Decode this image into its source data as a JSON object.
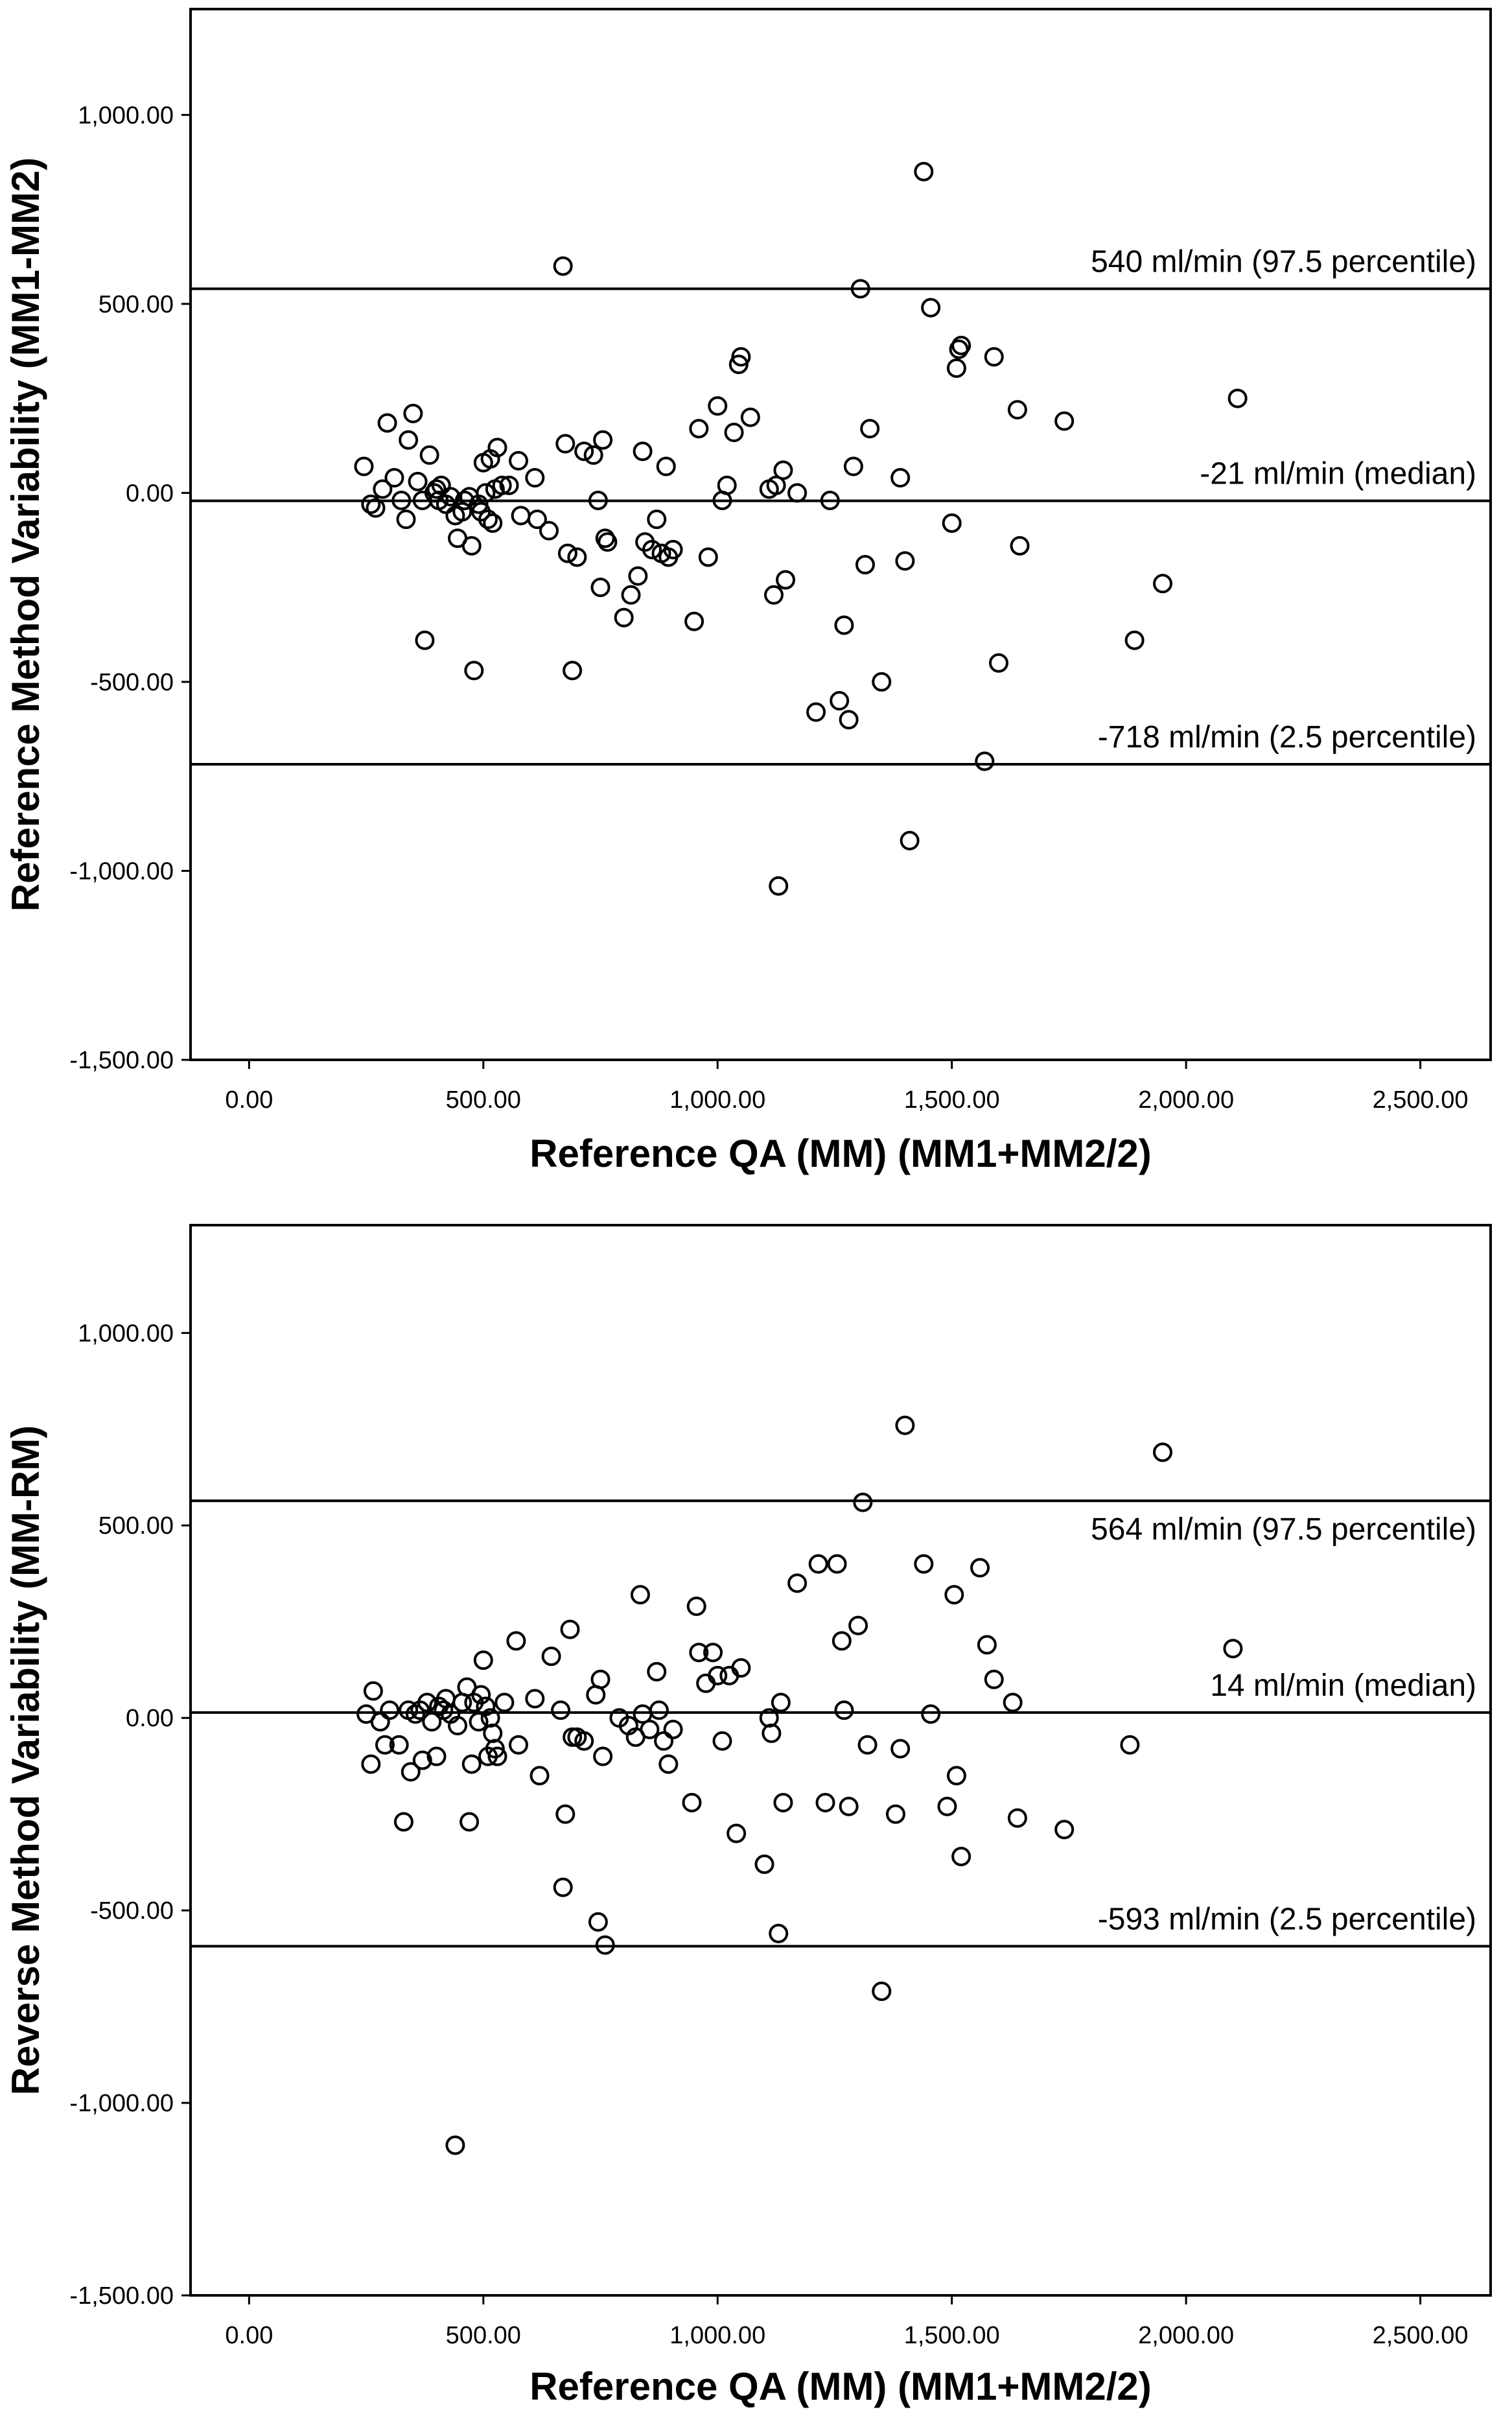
{
  "chart_data": [
    {
      "type": "scatter",
      "title": "",
      "xlabel": "Reference QA (MM) (MM1+MM2/2)",
      "ylabel": "Reference Method Variability (MM1-MM2)",
      "xlim": [
        -125,
        2650
      ],
      "ylim": [
        -1500,
        1280
      ],
      "xticks": [
        "0.00",
        "500.00",
        "1,000.00",
        "1,500.00",
        "2,000.00",
        "2,500.00"
      ],
      "yticks": [
        "1,000.00",
        "500.00",
        "0.00",
        "-500.00",
        "-1,000.00",
        "-1,500.00"
      ],
      "grid": false,
      "reference_lines": [
        {
          "y": 540,
          "label": "540 ml/min (97.5 percentile)"
        },
        {
          "y": -21,
          "label": "-21 ml/min (median)"
        },
        {
          "y": -718,
          "label": "-718 ml/min (2.5 percentile)"
        }
      ],
      "points": [
        [
          245,
          70
        ],
        [
          260,
          -30
        ],
        [
          270,
          -40
        ],
        [
          285,
          10
        ],
        [
          295,
          185
        ],
        [
          310,
          40
        ],
        [
          325,
          -20
        ],
        [
          335,
          -70
        ],
        [
          340,
          140
        ],
        [
          350,
          210
        ],
        [
          360,
          30
        ],
        [
          370,
          -20
        ],
        [
          375,
          -390
        ],
        [
          385,
          100
        ],
        [
          395,
          0
        ],
        [
          400,
          10
        ],
        [
          405,
          -20
        ],
        [
          410,
          20
        ],
        [
          420,
          -30
        ],
        [
          430,
          -10
        ],
        [
          440,
          -60
        ],
        [
          445,
          -120
        ],
        [
          455,
          -50
        ],
        [
          460,
          -20
        ],
        [
          470,
          -10
        ],
        [
          475,
          -140
        ],
        [
          480,
          -470
        ],
        [
          490,
          -30
        ],
        [
          495,
          -50
        ],
        [
          500,
          80
        ],
        [
          505,
          0
        ],
        [
          510,
          -70
        ],
        [
          515,
          90
        ],
        [
          520,
          -80
        ],
        [
          525,
          10
        ],
        [
          530,
          120
        ],
        [
          540,
          20
        ],
        [
          555,
          20
        ],
        [
          575,
          85
        ],
        [
          580,
          -60
        ],
        [
          610,
          40
        ],
        [
          615,
          -70
        ],
        [
          640,
          -100
        ],
        [
          670,
          600
        ],
        [
          675,
          130
        ],
        [
          680,
          -160
        ],
        [
          690,
          -470
        ],
        [
          700,
          -170
        ],
        [
          715,
          110
        ],
        [
          735,
          100
        ],
        [
          745,
          -20
        ],
        [
          750,
          -250
        ],
        [
          755,
          140
        ],
        [
          760,
          -120
        ],
        [
          765,
          -130
        ],
        [
          800,
          -330
        ],
        [
          815,
          -270
        ],
        [
          830,
          -220
        ],
        [
          840,
          110
        ],
        [
          845,
          -130
        ],
        [
          860,
          -150
        ],
        [
          870,
          -70
        ],
        [
          880,
          -160
        ],
        [
          890,
          70
        ],
        [
          895,
          -170
        ],
        [
          905,
          -150
        ],
        [
          950,
          -340
        ],
        [
          960,
          170
        ],
        [
          980,
          -170
        ],
        [
          1000,
          230
        ],
        [
          1010,
          -20
        ],
        [
          1020,
          20
        ],
        [
          1035,
          160
        ],
        [
          1045,
          340
        ],
        [
          1050,
          360
        ],
        [
          1070,
          200
        ],
        [
          1110,
          10
        ],
        [
          1120,
          -270
        ],
        [
          1125,
          20
        ],
        [
          1140,
          60
        ],
        [
          1145,
          -230
        ],
        [
          1170,
          0
        ],
        [
          1210,
          -580
        ],
        [
          1240,
          -20
        ],
        [
          1260,
          -550
        ],
        [
          1270,
          -350
        ],
        [
          1280,
          -600
        ],
        [
          1290,
          70
        ],
        [
          1305,
          540
        ],
        [
          1315,
          -190
        ],
        [
          1325,
          170
        ],
        [
          1350,
          -500
        ],
        [
          1390,
          40
        ],
        [
          1400,
          -180
        ],
        [
          1410,
          -920
        ],
        [
          1440,
          850
        ],
        [
          1455,
          490
        ],
        [
          1500,
          -80
        ],
        [
          1510,
          330
        ],
        [
          1515,
          380
        ],
        [
          1520,
          390
        ],
        [
          1570,
          -710
        ],
        [
          1590,
          360
        ],
        [
          1600,
          -450
        ],
        [
          1640,
          220
        ],
        [
          1645,
          -140
        ],
        [
          1740,
          190
        ],
        [
          1890,
          -390
        ],
        [
          1950,
          -240
        ],
        [
          2110,
          250
        ],
        [
          1130,
          -1040
        ]
      ]
    },
    {
      "type": "scatter",
      "title": "",
      "xlabel": "Reference QA (MM) (MM1+MM2/2)",
      "ylabel": "Reverse Method Variability (MM-RM)",
      "xlim": [
        -125,
        2650
      ],
      "ylim": [
        -1500,
        1280
      ],
      "xticks": [
        "0.00",
        "500.00",
        "1,000.00",
        "1,500.00",
        "2,000.00",
        "2,500.00"
      ],
      "yticks": [
        "1,000.00",
        "500.00",
        "0.00",
        "-500.00",
        "-1,000.00",
        "-1,500.00"
      ],
      "grid": false,
      "reference_lines": [
        {
          "y": 564,
          "label": "564 ml/min (97.5 percentile)"
        },
        {
          "y": 14,
          "label": "14 ml/min (median)"
        },
        {
          "y": -593,
          "label": "-593 ml/min (2.5 percentile)"
        }
      ],
      "points": [
        [
          250,
          10
        ],
        [
          260,
          -120
        ],
        [
          265,
          70
        ],
        [
          280,
          -10
        ],
        [
          290,
          -70
        ],
        [
          300,
          20
        ],
        [
          320,
          -70
        ],
        [
          330,
          -270
        ],
        [
          340,
          20
        ],
        [
          345,
          -140
        ],
        [
          355,
          10
        ],
        [
          365,
          20
        ],
        [
          370,
          -110
        ],
        [
          380,
          40
        ],
        [
          390,
          -10
        ],
        [
          400,
          -100
        ],
        [
          405,
          30
        ],
        [
          415,
          20
        ],
        [
          420,
          50
        ],
        [
          430,
          10
        ],
        [
          440,
          -1110
        ],
        [
          445,
          -20
        ],
        [
          455,
          40
        ],
        [
          465,
          80
        ],
        [
          470,
          -270
        ],
        [
          475,
          -120
        ],
        [
          480,
          40
        ],
        [
          490,
          -10
        ],
        [
          495,
          60
        ],
        [
          500,
          150
        ],
        [
          505,
          30
        ],
        [
          510,
          -100
        ],
        [
          515,
          0
        ],
        [
          520,
          -40
        ],
        [
          525,
          -80
        ],
        [
          530,
          -100
        ],
        [
          545,
          40
        ],
        [
          570,
          200
        ],
        [
          575,
          -70
        ],
        [
          610,
          50
        ],
        [
          620,
          -150
        ],
        [
          645,
          160
        ],
        [
          665,
          20
        ],
        [
          670,
          -440
        ],
        [
          675,
          -250
        ],
        [
          685,
          230
        ],
        [
          690,
          -50
        ],
        [
          700,
          -50
        ],
        [
          715,
          -60
        ],
        [
          740,
          60
        ],
        [
          745,
          -530
        ],
        [
          750,
          100
        ],
        [
          755,
          -100
        ],
        [
          760,
          -590
        ],
        [
          790,
          0
        ],
        [
          810,
          -20
        ],
        [
          825,
          -50
        ],
        [
          835,
          320
        ],
        [
          840,
          10
        ],
        [
          855,
          -30
        ],
        [
          870,
          120
        ],
        [
          875,
          20
        ],
        [
          885,
          -60
        ],
        [
          895,
          -120
        ],
        [
          905,
          -30
        ],
        [
          945,
          -220
        ],
        [
          955,
          290
        ],
        [
          960,
          170
        ],
        [
          975,
          90
        ],
        [
          990,
          170
        ],
        [
          1000,
          110
        ],
        [
          1010,
          -60
        ],
        [
          1025,
          110
        ],
        [
          1040,
          -300
        ],
        [
          1050,
          130
        ],
        [
          1100,
          -380
        ],
        [
          1110,
          0
        ],
        [
          1115,
          -40
        ],
        [
          1130,
          -560
        ],
        [
          1135,
          40
        ],
        [
          1140,
          -220
        ],
        [
          1170,
          350
        ],
        [
          1215,
          400
        ],
        [
          1230,
          -220
        ],
        [
          1255,
          400
        ],
        [
          1265,
          200
        ],
        [
          1270,
          20
        ],
        [
          1280,
          -230
        ],
        [
          1300,
          240
        ],
        [
          1310,
          560
        ],
        [
          1320,
          -70
        ],
        [
          1350,
          -710
        ],
        [
          1380,
          -250
        ],
        [
          1390,
          -80
        ],
        [
          1400,
          760
        ],
        [
          1440,
          400
        ],
        [
          1455,
          10
        ],
        [
          1490,
          -230
        ],
        [
          1505,
          320
        ],
        [
          1510,
          -150
        ],
        [
          1520,
          -360
        ],
        [
          1560,
          390
        ],
        [
          1575,
          190
        ],
        [
          1590,
          100
        ],
        [
          1630,
          40
        ],
        [
          1640,
          -260
        ],
        [
          1740,
          -290
        ],
        [
          1880,
          -70
        ],
        [
          1950,
          690
        ],
        [
          2100,
          180
        ]
      ]
    }
  ]
}
